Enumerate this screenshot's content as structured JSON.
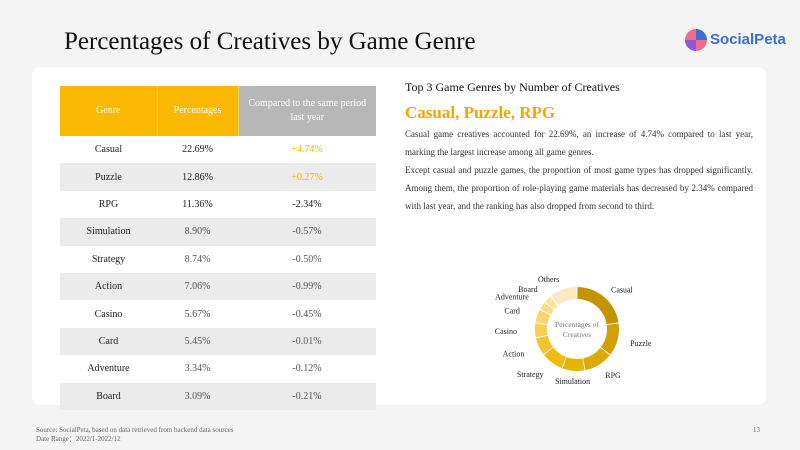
{
  "page": {
    "title": "Percentages of Creatives by Game Genre",
    "brand": "SocialPeta",
    "source": "Source: SocialPeta, based on data retrieved from backend data sources",
    "date_range": "Date Range：2022/1-2022/12",
    "page_number": "13"
  },
  "colors": {
    "accent": "#fbb800",
    "compare_header": "#b7b7b7",
    "highlight": "#f5b700"
  },
  "table": {
    "headers": [
      "Genre",
      "Percentages",
      "Compared to the same period last year"
    ],
    "rows": [
      [
        "Casual",
        "22.69%",
        "+4.74%"
      ],
      [
        "Puzzle",
        "12.86%",
        "+0.27%"
      ],
      [
        "RPG",
        "11.36%",
        "-2.34%"
      ],
      [
        "Simulation",
        "8.90%",
        "-0.57%"
      ],
      [
        "Strategy",
        "8.74%",
        "-0.50%"
      ],
      [
        "Action",
        "7.06%",
        "-0.99%"
      ],
      [
        "Casino",
        "5.67%",
        "-0.45%"
      ],
      [
        "Card",
        "5.45%",
        "-0.01%"
      ],
      [
        "Adventure",
        "3.34%",
        "-0.12%"
      ],
      [
        "Board",
        "3.09%",
        "-0.21%"
      ]
    ]
  },
  "summary": {
    "heading": "Top 3 Game Genres by Number of Creatives",
    "subtitle": "Casual, Puzzle, RPG",
    "paragraph1": "Casual game creatives accounted for 22.69%, an increase of 4.74% compared to last year, marking the largest increase among all game genres.",
    "paragraph2": "Except casual and puzzle games, the proportion of most game types has dropped significantly. Among them, the proportion of role-playing game materials has decreased by 2.34% compared with last year, and the ranking has also dropped from second to third."
  },
  "chart_data": {
    "type": "pie",
    "subtype": "donut",
    "center_label": "Percentages of Creatives",
    "categories": [
      "Casual",
      "Puzzle",
      "RPG",
      "Simulation",
      "Strategy",
      "Action",
      "Casino",
      "Card",
      "Adventure",
      "Board",
      "Others"
    ],
    "values": [
      22.69,
      12.86,
      11.36,
      8.9,
      8.74,
      7.06,
      5.67,
      5.45,
      3.34,
      3.09,
      10.84
    ],
    "colors": [
      "#c49400",
      "#d29f00",
      "#dcaa00",
      "#e5b300",
      "#eebb10",
      "#f4c430",
      "#f7cd55",
      "#f8d670",
      "#f9dd88",
      "#fae3a0",
      "#fbe9c2"
    ]
  }
}
